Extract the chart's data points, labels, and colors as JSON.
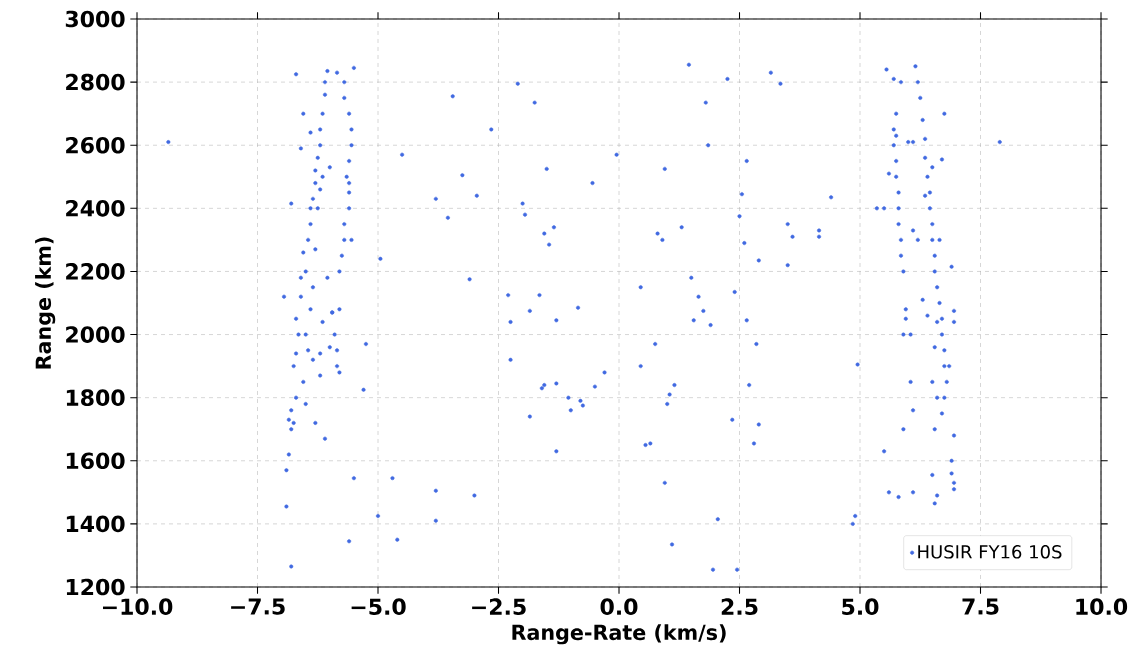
{
  "chart_data": {
    "type": "scatter",
    "xlabel": "Range-Rate (km/s)",
    "ylabel": "Range (km)",
    "xlim": [
      -10,
      10
    ],
    "ylim": [
      1200,
      3000
    ],
    "xticks": [
      {
        "value": -10,
        "label": "−10.0"
      },
      {
        "value": -7.5,
        "label": "−7.5"
      },
      {
        "value": -5,
        "label": "−5.0"
      },
      {
        "value": -2.5,
        "label": "−2.5"
      },
      {
        "value": 0,
        "label": "0.0"
      },
      {
        "value": 2.5,
        "label": "2.5"
      },
      {
        "value": 5,
        "label": "5.0"
      },
      {
        "value": 7.5,
        "label": "7.5"
      },
      {
        "value": 10,
        "label": "10.0"
      }
    ],
    "yticks": [
      1200,
      1400,
      1600,
      1800,
      2000,
      2200,
      2400,
      2600,
      2800,
      3000
    ],
    "grid": true,
    "legend": "bottom right",
    "marker": "circle",
    "series": [
      {
        "name": "HUSIR FY16 10S",
        "color": "#4169e1",
        "x": [
          -9.35,
          -4.95,
          -4.5,
          -3.8,
          -3.55,
          -3.45,
          -3.25,
          -3.1,
          -2.95,
          -2.65,
          -2.3,
          -2.25,
          -2.25,
          -2.1,
          -2.0,
          -1.95,
          -1.85,
          -1.85,
          -1.75,
          -1.65,
          -1.55,
          -1.55,
          -1.6,
          -1.5,
          -1.45,
          -1.35,
          -1.3,
          -1.3,
          -1.3,
          -1.05,
          -1.0,
          -0.85,
          -0.8,
          -0.75,
          -0.55,
          -0.5,
          -0.3,
          -0.05,
          0.45,
          0.45,
          0.55,
          0.65,
          0.75,
          0.8,
          0.9,
          0.95,
          1.0,
          1.05,
          1.15,
          1.3,
          1.45,
          1.5,
          1.55,
          1.65,
          1.75,
          1.8,
          1.85,
          1.9,
          2.25,
          2.35,
          2.4,
          2.5,
          2.55,
          2.6,
          2.65,
          2.65,
          2.7,
          2.8,
          2.85,
          2.9,
          2.9,
          3.15,
          3.35,
          3.5,
          3.6,
          3.5,
          4.15,
          4.15,
          4.4,
          1.1,
          2.05,
          1.95,
          2.45,
          0.95,
          -3.0,
          -3.8,
          -3.8,
          -4.7,
          -4.6,
          -5.0,
          -5.5,
          -5.3,
          -5.25,
          -5.6,
          -6.8,
          -6.9,
          4.95,
          4.9,
          4.85,
          7.9,
          5.35,
          5.5,
          5.6,
          5.8,
          6.1,
          6.5,
          6.55,
          6.6,
          6.95,
          6.9,
          6.9,
          6.95,
          6.95,
          6.9,
          6.95,
          6.95,
          6.75,
          6.7,
          6.55,
          -6.9,
          -6.85,
          -6.85,
          -6.8,
          -6.75,
          -6.8,
          -6.7,
          -6.75,
          -6.7,
          -6.65,
          -6.7,
          -6.6,
          -6.6,
          -6.55,
          -6.5,
          -6.55,
          -6.45,
          -6.4,
          -6.4,
          -6.35,
          -6.3,
          -6.3,
          -6.25,
          -6.2,
          -6.2,
          -6.15,
          -6.1,
          -6.1,
          -6.05,
          -6.5,
          -6.45,
          -6.4,
          -6.35,
          -6.3,
          -6.25,
          -6.2,
          -6.15,
          -6.0,
          -6.35,
          -6.2,
          -6.15,
          -6.05,
          -5.95,
          -6.6,
          -6.8,
          -6.95,
          -6.3,
          -6.5,
          -6.1,
          -6.4,
          -6.2,
          -6.55,
          -6.7,
          -5.6,
          -5.6,
          -5.65,
          -5.6,
          -5.55,
          -5.55,
          -5.6,
          -5.7,
          -5.7,
          -5.85,
          -5.7,
          -5.7,
          -5.75,
          -5.8,
          -5.8,
          -5.9,
          -5.85,
          -5.85,
          -5.8,
          -5.95,
          -5.5,
          -5.55,
          -6.0,
          -5.6,
          5.75,
          5.7,
          5.7,
          5.75,
          5.75,
          5.8,
          5.8,
          5.8,
          5.85,
          5.85,
          5.9,
          5.95,
          5.95,
          5.9,
          6.05,
          5.9,
          5.6,
          5.55,
          5.7,
          5.85,
          5.5,
          5.75,
          6.1,
          6.05,
          6.15,
          6.2,
          6.25,
          6.3,
          6.35,
          6.35,
          6.4,
          6.45,
          6.45,
          6.5,
          6.5,
          6.55,
          6.55,
          6.6,
          6.65,
          6.7,
          6.7,
          6.75,
          6.75,
          6.8,
          6.75,
          6.7,
          6.85,
          6.6,
          6.5,
          6.55,
          6.4,
          6.3,
          6.2,
          6.1,
          6.1,
          6.0,
          6.35,
          6.5,
          6.6,
          6.65
        ],
        "values": [
          2610,
          2240,
          2570,
          2430,
          2370,
          2755,
          2505,
          2175,
          2440,
          2650,
          2125,
          2040,
          1920,
          2795,
          2415,
          2380,
          2075,
          1740,
          2735,
          2125,
          2320,
          1840,
          1830,
          2525,
          2285,
          2340,
          2045,
          1630,
          1845,
          1800,
          1760,
          2085,
          1790,
          1775,
          2480,
          1835,
          1880,
          2570,
          2150,
          1900,
          1650,
          1655,
          1970,
          2320,
          2300,
          2525,
          1780,
          1810,
          1840,
          2340,
          2855,
          2180,
          2045,
          2120,
          2075,
          2735,
          2600,
          2030,
          2810,
          1730,
          2135,
          2375,
          2445,
          2290,
          2550,
          2045,
          1840,
          1655,
          1970,
          2235,
          1715,
          2830,
          2795,
          2350,
          2310,
          2220,
          2330,
          2310,
          2435,
          1335,
          1415,
          1255,
          1255,
          1530,
          1490,
          1505,
          1410,
          1545,
          1350,
          1425,
          1545,
          1825,
          1970,
          1345,
          1265,
          1455,
          1905,
          1425,
          1400,
          2610,
          2400,
          1630,
          1500,
          1485,
          1500,
          1555,
          1465,
          1490,
          1680,
          1600,
          1560,
          1530,
          1510,
          2215,
          2075,
          2040,
          2700,
          2555,
          1700,
          1570,
          1620,
          1730,
          1700,
          1720,
          1760,
          1800,
          1900,
          1940,
          2000,
          2050,
          2120,
          2180,
          1850,
          2200,
          2260,
          2300,
          2350,
          2400,
          2430,
          2480,
          2520,
          2560,
          2600,
          2650,
          2700,
          2760,
          2800,
          2835,
          2000,
          1950,
          2080,
          2150,
          2270,
          2400,
          2460,
          2500,
          2530,
          1920,
          1870,
          2040,
          2180,
          2070,
          2590,
          2415,
          2120,
          1720,
          1780,
          1670,
          2640,
          1940,
          2700,
          2825,
          2400,
          2450,
          2500,
          2550,
          2600,
          2650,
          2700,
          2750,
          2800,
          2830,
          2350,
          2300,
          2250,
          2200,
          2080,
          2000,
          1950,
          1900,
          1880,
          2070,
          2845,
          2300,
          1960,
          2480,
          2700,
          2650,
          2600,
          2550,
          2500,
          2450,
          2400,
          2350,
          2300,
          2250,
          2200,
          2080,
          2050,
          2000,
          1850,
          1700,
          2510,
          2840,
          2810,
          2800,
          2400,
          2630,
          1760,
          2000,
          2850,
          2800,
          2750,
          2680,
          2620,
          2560,
          2500,
          2450,
          2400,
          2350,
          2300,
          2250,
          2200,
          2150,
          2100,
          2050,
          2000,
          1950,
          1900,
          1850,
          1800,
          1750,
          1900,
          1800,
          1850,
          1960,
          2060,
          2110,
          2300,
          2330,
          2610,
          2610,
          2440,
          2530,
          2040,
          2300
        ]
      }
    ]
  }
}
